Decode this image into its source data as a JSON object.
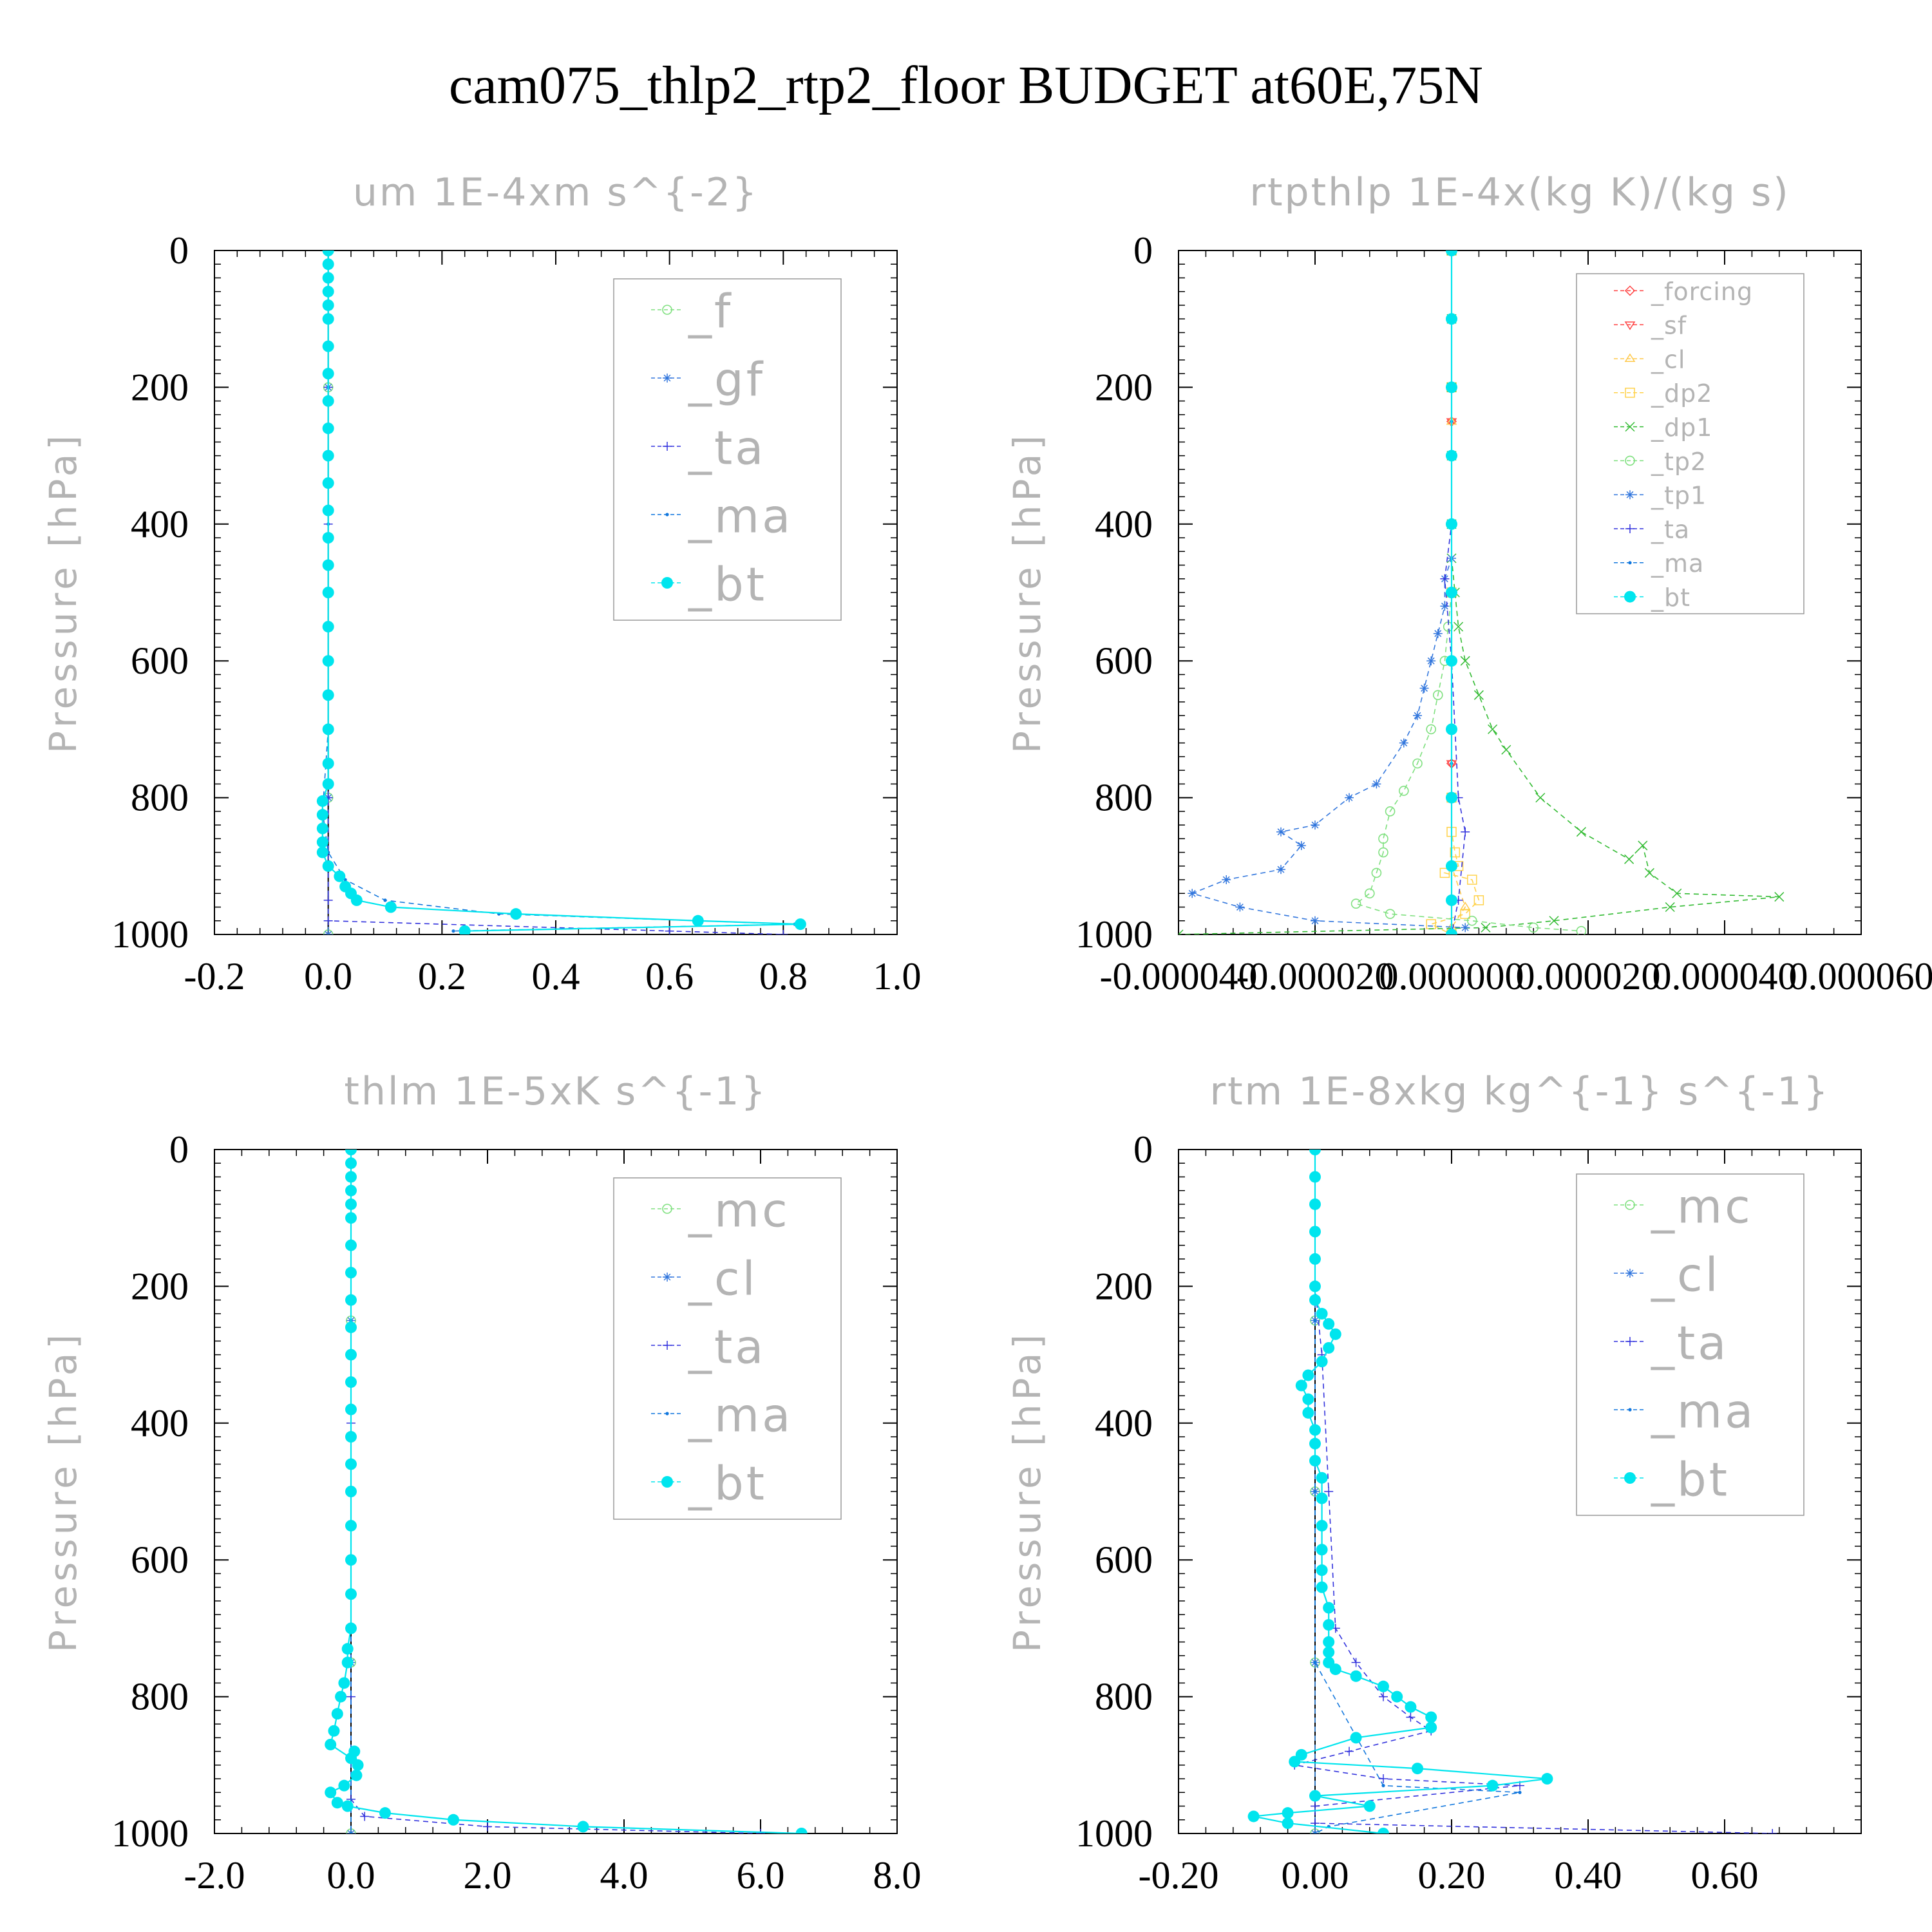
{
  "figure": {
    "title": "cam075_thlp2_rtp2_floor  BUDGET at60E,75N",
    "colors": {
      "axis": "#000000",
      "faint_text": "#b4b4b4",
      "legend_box": "#999999",
      "forcing": "#ff4444",
      "sf": "#ff4444",
      "cl_yellow": "#ffc94a",
      "dp2": "#ffd24a",
      "dp1": "#33bb33",
      "green": "#7fe07f",
      "blue": "#3377dd",
      "ta": "#3333dd",
      "ma": "#1177dd",
      "bt": "#00e5ee",
      "black": "#000000"
    }
  },
  "chart_data": [
    {
      "type": "line",
      "title": "um  1E-4xm s^{-2}",
      "ylabel": "Pressure [hPa]",
      "ylim": [
        1000,
        0
      ],
      "xlim": [
        -0.2,
        1.0
      ],
      "xticks": [
        -0.2,
        0.0,
        0.2,
        0.4,
        0.6,
        0.8,
        1.0
      ],
      "xtick_labels": [
        "-0.2",
        "0.0",
        "0.2",
        "0.4",
        "0.6",
        "0.8",
        "1.0"
      ],
      "yticks": [
        0,
        200,
        400,
        600,
        800,
        1000
      ],
      "ytick_labels": [
        "0",
        "200",
        "400",
        "600",
        "800",
        "1000"
      ],
      "legend": [
        "_f",
        "_gf",
        "_ta",
        "_ma",
        "_bt"
      ],
      "legend_placement": "top-right",
      "series": [
        {
          "name": "_f",
          "color": "#7fe07f",
          "marker": "circle",
          "x": [
            0,
            0,
            0,
            0,
            0
          ],
          "y": [
            0,
            200,
            500,
            800,
            1000
          ]
        },
        {
          "name": "_gf",
          "color": "#3377dd",
          "marker": "star",
          "x": [
            0,
            0,
            0,
            0,
            0
          ],
          "y": [
            0,
            200,
            500,
            800,
            1000
          ]
        },
        {
          "name": "_ta",
          "color": "#3333dd",
          "marker": "plus",
          "x": [
            0,
            0,
            0,
            0,
            0,
            0,
            0,
            0,
            0.6,
            0.8
          ],
          "y": [
            0,
            200,
            400,
            600,
            800,
            900,
            950,
            980,
            995,
            1000
          ]
        },
        {
          "name": "_ma",
          "color": "#1177dd",
          "marker": "dot",
          "x": [
            0,
            0,
            0,
            0,
            -0.01,
            0,
            0.03,
            0.1,
            0.3,
            0.65,
            0.82,
            0.22
          ],
          "y": [
            0,
            200,
            400,
            700,
            820,
            880,
            920,
            950,
            970,
            980,
            985,
            995
          ]
        },
        {
          "name": "_bt",
          "color": "#00e5ee",
          "marker": "filled",
          "x": [
            0,
            0,
            0,
            0,
            0,
            0,
            0,
            0,
            0,
            0,
            0,
            0,
            0,
            0,
            0,
            0,
            0,
            0,
            0,
            0,
            0,
            0,
            -0.01,
            -0.01,
            -0.01,
            -0.01,
            -0.01,
            0.0,
            0.02,
            0.03,
            0.04,
            0.05,
            0.11,
            0.33,
            0.65,
            0.83,
            0.24
          ],
          "y": [
            0,
            20,
            40,
            60,
            80,
            100,
            140,
            180,
            220,
            260,
            300,
            340,
            380,
            420,
            460,
            500,
            550,
            600,
            650,
            700,
            750,
            780,
            805,
            825,
            845,
            865,
            880,
            900,
            915,
            930,
            940,
            950,
            960,
            970,
            980,
            985,
            995
          ]
        }
      ]
    },
    {
      "type": "line",
      "title": "rtpthlp  1E-4x(kg K)/(kg s)",
      "ylabel": "Pressure [hPa]",
      "ylim": [
        1000,
        0
      ],
      "xlim": [
        -4e-05,
        6e-05
      ],
      "xticks": [
        -4e-05,
        -2e-05,
        0.0,
        2e-05,
        4e-05,
        6e-05
      ],
      "xtick_labels": [
        "-0.000040",
        "-0.000020",
        "0.000000",
        "0.000020",
        "0.000040",
        "0.000060"
      ],
      "yticks": [
        0,
        200,
        400,
        600,
        800,
        1000
      ],
      "ytick_labels": [
        "0",
        "200",
        "400",
        "600",
        "800",
        "1000"
      ],
      "legend": [
        "_forcing",
        "_sf",
        "_cl",
        "_dp2",
        "_dp1",
        "_tp2",
        "_tp1",
        "_ta",
        "_ma",
        "_bt"
      ],
      "legend_placement": "top-right",
      "series": [
        {
          "name": "_forcing",
          "color": "#ff4444",
          "marker": "diamond",
          "x": [
            0,
            0,
            0,
            0,
            0
          ],
          "y": [
            0,
            250,
            500,
            750,
            1000
          ]
        },
        {
          "name": "_sf",
          "color": "#ff4444",
          "marker": "triangle-down",
          "x": [
            0,
            0,
            0,
            0,
            0
          ],
          "y": [
            0,
            250,
            500,
            750,
            1000
          ]
        },
        {
          "name": "_cl",
          "color": "#ffc94a",
          "marker": "triangle-up",
          "x": [
            0,
            0,
            0,
            0,
            2e-06,
            0,
            0
          ],
          "y": [
            0,
            250,
            500,
            900,
            960,
            990,
            1000
          ]
        },
        {
          "name": "_dp2",
          "color": "#ffd24a",
          "marker": "square",
          "x": [
            0,
            0,
            0,
            0,
            0,
            5e-07,
            1e-06,
            -1e-06,
            3e-06,
            4e-06,
            2e-06,
            -3e-06,
            0
          ],
          "y": [
            0,
            200,
            500,
            800,
            850,
            880,
            900,
            910,
            920,
            950,
            970,
            985,
            1000
          ]
        },
        {
          "name": "_dp1",
          "color": "#33bb33",
          "marker": "x",
          "x": [
            0,
            0,
            0,
            0,
            0,
            0,
            5e-07,
            1e-06,
            2e-06,
            4e-06,
            6e-06,
            8e-06,
            1.3e-05,
            1.9e-05,
            2.6e-05,
            2.8e-05,
            2.9e-05,
            3.3e-05,
            4.8e-05,
            3.2e-05,
            1.5e-05,
            5e-06,
            -4e-05
          ],
          "y": [
            0,
            100,
            200,
            300,
            400,
            450,
            500,
            550,
            600,
            650,
            700,
            730,
            800,
            850,
            890,
            870,
            910,
            940,
            945,
            960,
            980,
            990,
            1000
          ]
        },
        {
          "name": "_tp2",
          "color": "#7fe07f",
          "marker": "circle",
          "x": [
            0,
            0,
            0,
            0,
            -5e-07,
            -1e-06,
            -2e-06,
            -3e-06,
            -5e-06,
            -7e-06,
            -9e-06,
            -1e-05,
            -1e-05,
            -1.1e-05,
            -1.2e-05,
            -1.4e-05,
            -9e-06,
            3e-06,
            1.2e-05,
            1.9e-05
          ],
          "y": [
            0,
            200,
            400,
            500,
            550,
            600,
            650,
            700,
            750,
            790,
            820,
            860,
            880,
            910,
            940,
            955,
            970,
            980,
            990,
            995
          ]
        },
        {
          "name": "_tp1",
          "color": "#3377dd",
          "marker": "star",
          "x": [
            0,
            0,
            0,
            -1e-06,
            -1e-06,
            -2e-06,
            -3e-06,
            -4e-06,
            -5e-06,
            -7e-06,
            -1.1e-05,
            -1.5e-05,
            -2e-05,
            -2.5e-05,
            -2.2e-05,
            -2.5e-05,
            -3.3e-05,
            -3.8e-05,
            -3.1e-05,
            -2e-05,
            2e-06
          ],
          "y": [
            0,
            300,
            450,
            480,
            520,
            560,
            600,
            640,
            680,
            720,
            780,
            800,
            840,
            850,
            870,
            905,
            920,
            940,
            960,
            980,
            990
          ]
        },
        {
          "name": "_ta",
          "color": "#3333dd",
          "marker": "plus",
          "x": [
            0,
            0,
            -1e-06,
            0,
            1e-06,
            2e-06,
            1e-06,
            0
          ],
          "y": [
            0,
            400,
            480,
            600,
            800,
            850,
            950,
            1000
          ]
        },
        {
          "name": "_ma",
          "color": "#1177dd",
          "marker": "dot",
          "x": [
            0,
            0,
            0,
            0,
            0
          ],
          "y": [
            0,
            250,
            500,
            750,
            1000
          ]
        },
        {
          "name": "_bt",
          "color": "#00e5ee",
          "marker": "filled",
          "x": [
            0,
            0,
            0,
            0,
            0,
            0,
            0,
            0,
            0,
            0,
            0,
            0
          ],
          "y": [
            0,
            100,
            200,
            300,
            400,
            500,
            600,
            700,
            800,
            900,
            950,
            1000
          ]
        }
      ]
    },
    {
      "type": "line",
      "title": "thlm  1E-5xK s^{-1}",
      "ylabel": "Pressure [hPa]",
      "ylim": [
        1000,
        0
      ],
      "xlim": [
        -2.0,
        8.0
      ],
      "xticks": [
        -2.0,
        0.0,
        2.0,
        4.0,
        6.0,
        8.0
      ],
      "xtick_labels": [
        "-2.0",
        "0.0",
        "2.0",
        "4.0",
        "6.0",
        "8.0"
      ],
      "yticks": [
        0,
        200,
        400,
        600,
        800,
        1000
      ],
      "ytick_labels": [
        "0",
        "200",
        "400",
        "600",
        "800",
        "1000"
      ],
      "legend": [
        "_mc",
        "_cl",
        "_ta",
        "_ma",
        "_bt"
      ],
      "legend_placement": "top-right",
      "series": [
        {
          "name": "_mc",
          "color": "#7fe07f",
          "marker": "circle",
          "x": [
            0,
            0,
            0,
            0,
            0
          ],
          "y": [
            0,
            250,
            500,
            750,
            1000
          ]
        },
        {
          "name": "_cl",
          "color": "#3377dd",
          "marker": "star",
          "x": [
            0,
            0,
            0,
            0,
            0
          ],
          "y": [
            0,
            250,
            500,
            750,
            1000
          ]
        },
        {
          "name": "_ta",
          "color": "#3333dd",
          "marker": "plus",
          "x": [
            0,
            0,
            0,
            0,
            0.2,
            2.0,
            6.0
          ],
          "y": [
            0,
            400,
            800,
            950,
            975,
            990,
            1000
          ]
        },
        {
          "name": "_ma",
          "color": "#1177dd",
          "marker": "dot",
          "x": [
            0,
            0,
            0,
            0,
            0
          ],
          "y": [
            0,
            250,
            500,
            750,
            1000
          ]
        },
        {
          "name": "_bt",
          "color": "#00e5ee",
          "marker": "filled",
          "x": [
            0,
            0,
            0,
            0,
            0,
            0,
            0,
            0,
            0,
            0,
            0,
            0,
            0,
            0,
            0,
            0,
            0,
            0,
            0,
            0,
            -0.05,
            -0.05,
            -0.1,
            -0.15,
            -0.2,
            -0.25,
            -0.3,
            0.0,
            0.05,
            0.1,
            0.08,
            -0.1,
            -0.3,
            -0.2,
            -0.05,
            0.5,
            1.5,
            3.4,
            6.6
          ],
          "y": [
            0,
            20,
            40,
            60,
            80,
            100,
            140,
            180,
            220,
            260,
            300,
            340,
            380,
            420,
            460,
            500,
            550,
            600,
            650,
            700,
            730,
            750,
            780,
            800,
            825,
            850,
            870,
            890,
            880,
            900,
            915,
            930,
            940,
            955,
            960,
            970,
            980,
            990,
            1000
          ]
        }
      ]
    },
    {
      "type": "line",
      "title": "rtm  1E-8xkg kg^{-1} s^{-1}",
      "ylabel": "Pressure [hPa]",
      "ylim": [
        1000,
        0
      ],
      "xlim": [
        -0.2,
        0.8
      ],
      "xticks": [
        -0.2,
        0.0,
        0.2,
        0.4,
        0.6
      ],
      "xtick_labels": [
        "-0.20",
        "0.00",
        "0.20",
        "0.40",
        "0.60"
      ],
      "yticks": [
        0,
        200,
        400,
        600,
        800,
        1000
      ],
      "ytick_labels": [
        "0",
        "200",
        "400",
        "600",
        "800",
        "1000"
      ],
      "legend": [
        "_mc",
        "_cl",
        "_ta",
        "_ma",
        "_bt"
      ],
      "legend_placement": "top-right",
      "series": [
        {
          "name": "_mc",
          "color": "#7fe07f",
          "marker": "circle",
          "x": [
            0,
            0,
            0,
            0,
            0
          ],
          "y": [
            0,
            250,
            500,
            750,
            1000
          ]
        },
        {
          "name": "_cl",
          "color": "#3377dd",
          "marker": "star",
          "x": [
            0,
            0,
            0,
            0,
            0
          ],
          "y": [
            0,
            250,
            500,
            750,
            1000
          ]
        },
        {
          "name": "_ta",
          "color": "#3333dd",
          "marker": "plus",
          "x": [
            0,
            0,
            0.01,
            0.02,
            0.03,
            0.06,
            0.1,
            0.14,
            0.17,
            0.05,
            -0.03,
            0.1,
            0.3,
            0.0,
            0.0,
            0.67
          ],
          "y": [
            0,
            200,
            300,
            500,
            700,
            750,
            800,
            830,
            850,
            880,
            900,
            920,
            930,
            960,
            985,
            1000
          ]
        },
        {
          "name": "_ma",
          "color": "#1177dd",
          "marker": "dot",
          "x": [
            0,
            0,
            0,
            0,
            0.1,
            0.3,
            0.02,
            0
          ],
          "y": [
            0,
            250,
            500,
            750,
            930,
            940,
            990,
            1000
          ]
        },
        {
          "name": "_bt",
          "color": "#00e5ee",
          "marker": "filled",
          "x": [
            0,
            0,
            0,
            0,
            0,
            0,
            0.0,
            0.01,
            0.02,
            0.03,
            0.02,
            0.01,
            -0.01,
            -0.02,
            -0.01,
            -0.01,
            0,
            0,
            0,
            0.01,
            0.01,
            0.01,
            0.01,
            0.01,
            0.01,
            0.02,
            0.02,
            0.02,
            0.02,
            0.02,
            0.03,
            0.06,
            0.1,
            0.12,
            0.14,
            0.17,
            0.17,
            0.06,
            -0.02,
            -0.03,
            0.15,
            0.34,
            0.26,
            0.0,
            0.08,
            -0.04,
            -0.09,
            -0.04,
            0.1
          ],
          "y": [
            0,
            40,
            80,
            120,
            160,
            200,
            220,
            240,
            255,
            270,
            290,
            310,
            330,
            345,
            365,
            385,
            410,
            430,
            455,
            480,
            510,
            550,
            585,
            615,
            640,
            670,
            695,
            720,
            735,
            750,
            760,
            770,
            785,
            800,
            815,
            830,
            845,
            860,
            885,
            895,
            905,
            920,
            930,
            945,
            960,
            970,
            975,
            985,
            1000
          ]
        }
      ]
    }
  ]
}
